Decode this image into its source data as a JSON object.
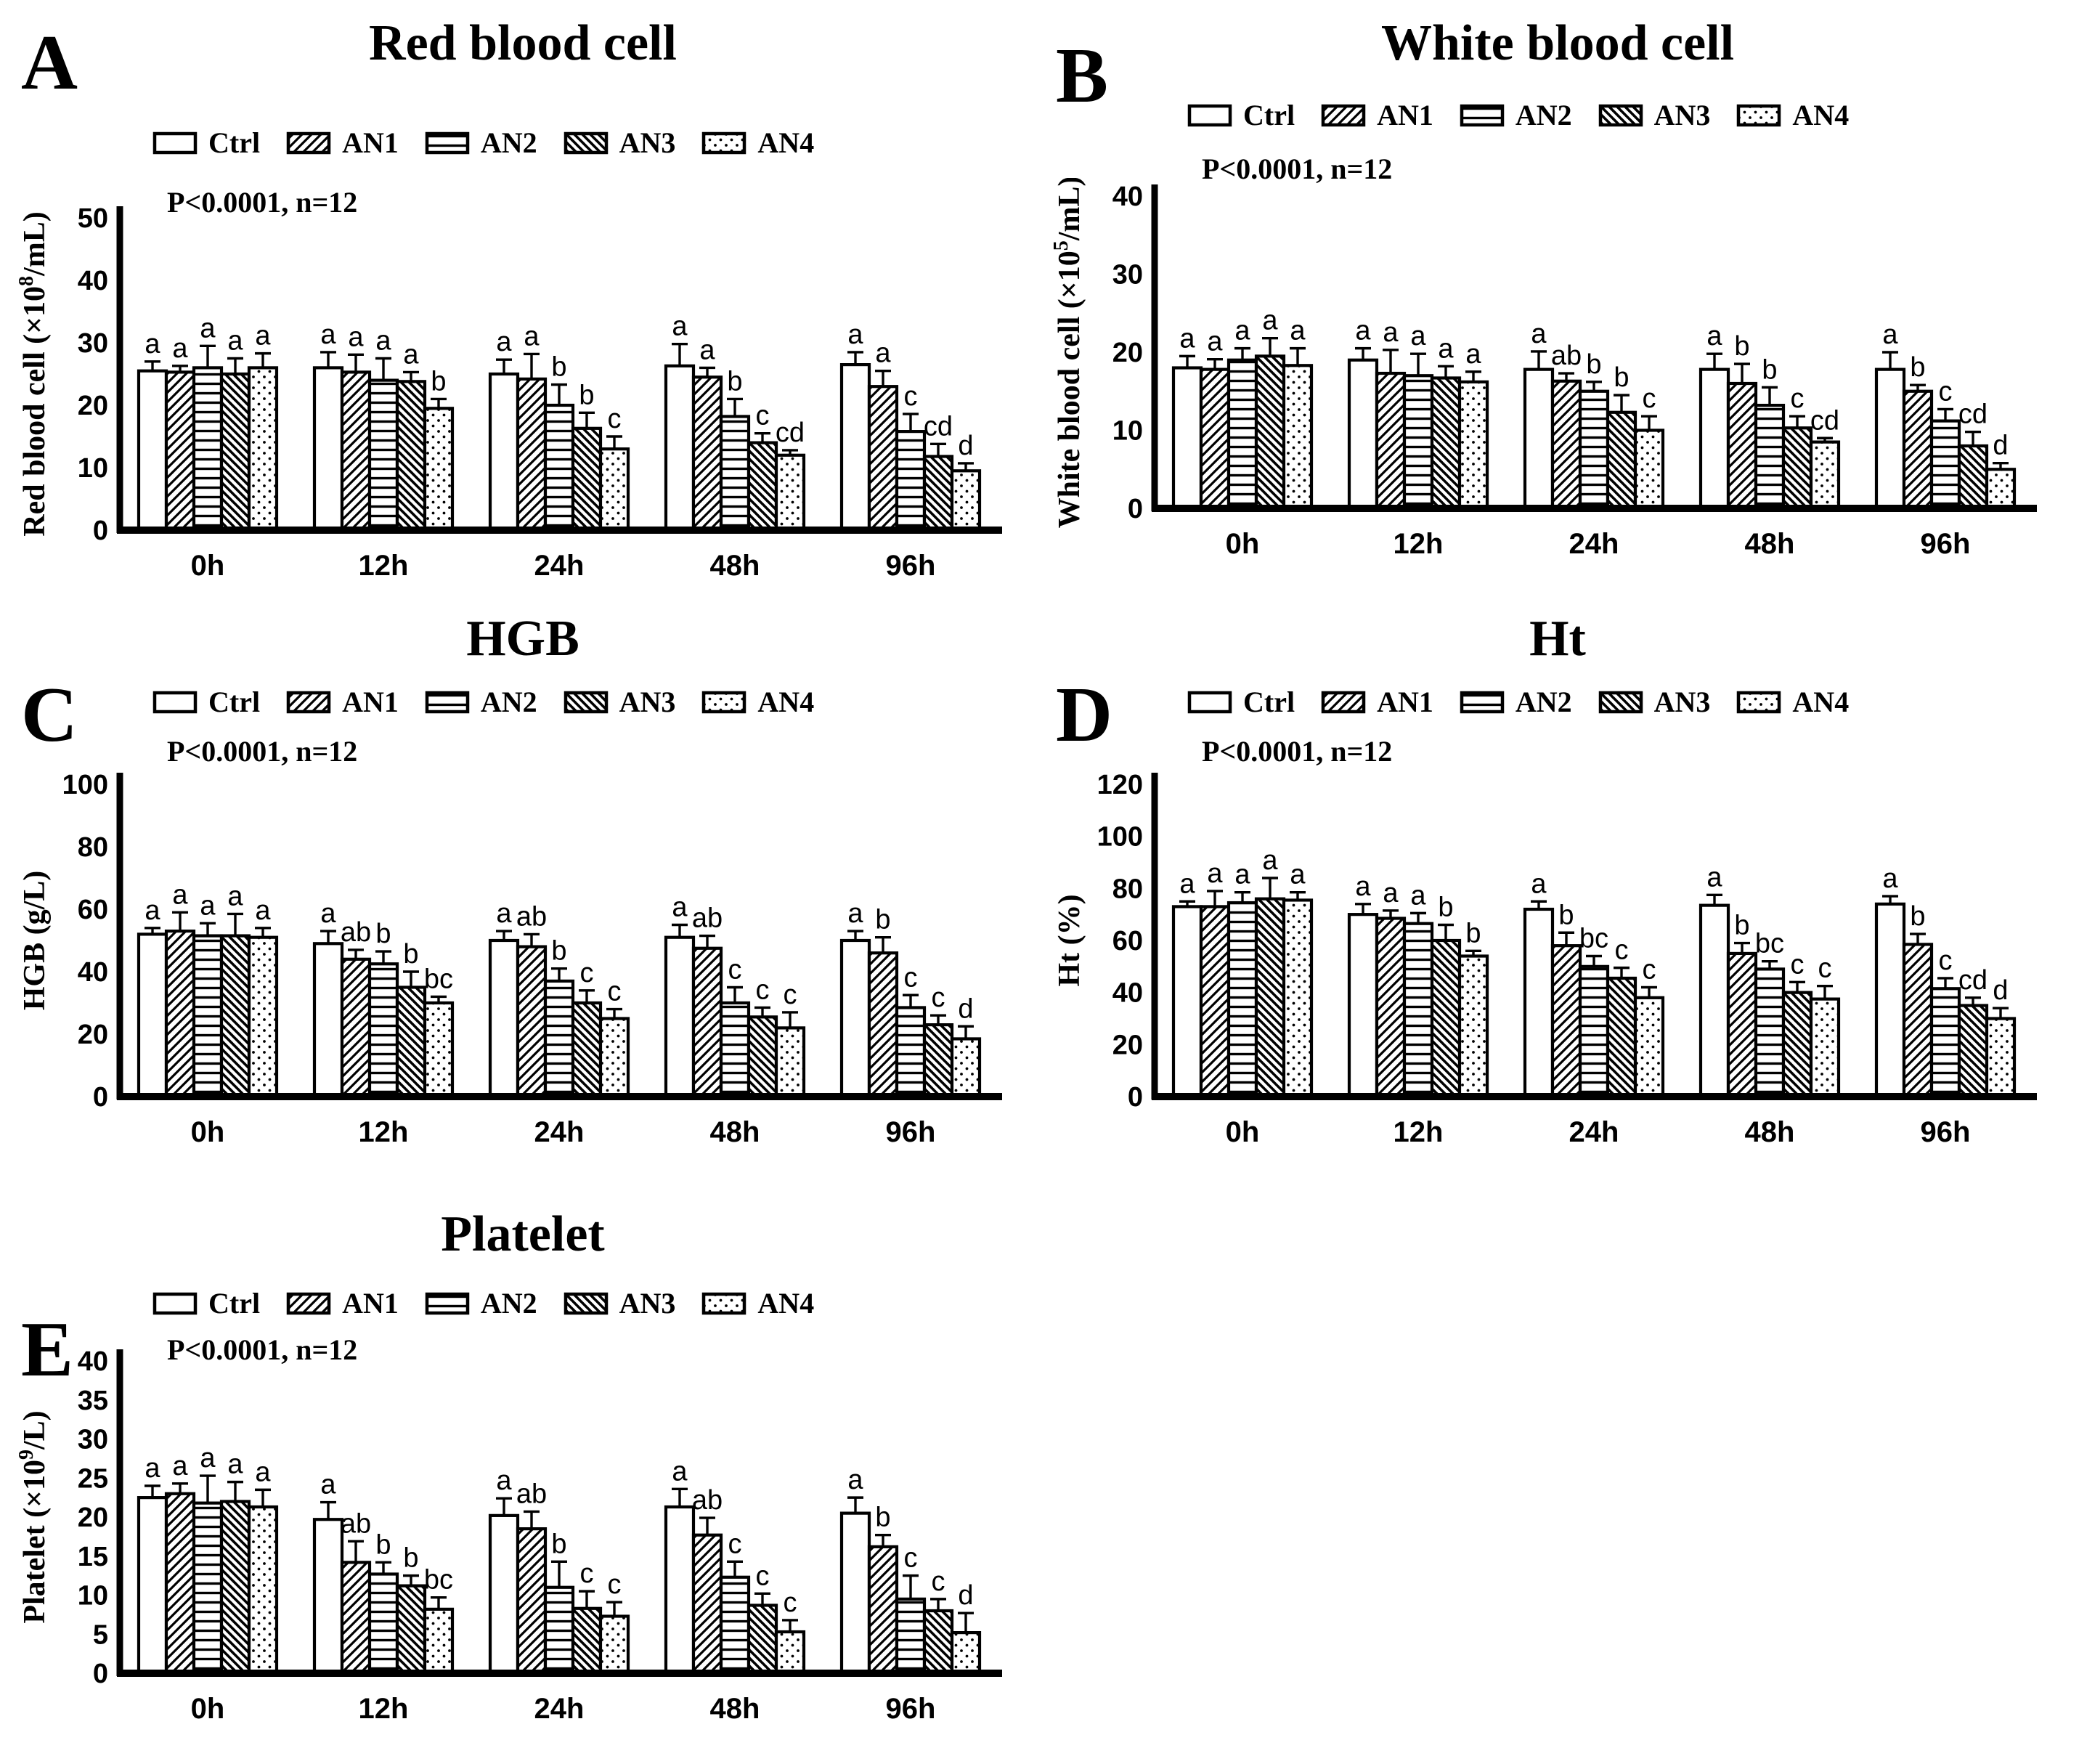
{
  "figure": {
    "stats_note": "P<0.0001, n=12",
    "background_color": "#ffffff",
    "foreground_color": "#000000",
    "legend_labels": [
      "Ctrl",
      "AN1",
      "AN2",
      "AN3",
      "AN4"
    ]
  },
  "chart_data": [
    {
      "panel_letter": "A",
      "type": "bar",
      "title": "Red blood cell",
      "ylabel": {
        "prefix": "Red blood cell (×10",
        "sup": "8",
        "suffix": "/mL)"
      },
      "ylim": [
        0,
        50
      ],
      "yticks": [
        0,
        10,
        20,
        30,
        40,
        50
      ],
      "categories": [
        "0h",
        "12h",
        "24h",
        "48h",
        "96h"
      ],
      "legend_position": "top",
      "grid": false,
      "series": [
        {
          "name": "Ctrl",
          "pattern": "plain",
          "values": [
            25.5,
            26,
            25,
            26.3,
            26.5
          ],
          "errors": [
            1.5,
            2.5,
            2.3,
            3.5,
            2
          ],
          "sig": [
            "a",
            "a",
            "a",
            "a",
            "a"
          ]
        },
        {
          "name": "AN1",
          "pattern": "diagonal-up-hatch",
          "values": [
            25.3,
            25.3,
            24.2,
            24.5,
            23
          ],
          "errors": [
            1,
            2.8,
            4,
            1.5,
            2.5
          ],
          "sig": [
            "a",
            "a",
            "a",
            "a",
            "a"
          ]
        },
        {
          "name": "AN2",
          "pattern": "horizontal-lines",
          "values": [
            26,
            24,
            20,
            18.2,
            15.8
          ],
          "errors": [
            3.5,
            3.5,
            3.3,
            2.8,
            2.8
          ],
          "sig": [
            "a",
            "a",
            "b",
            "b",
            "c"
          ]
        },
        {
          "name": "AN3",
          "pattern": "diagonal-down-hatch",
          "values": [
            25,
            23.8,
            16.3,
            14,
            11.8
          ],
          "errors": [
            2.5,
            1.5,
            2.5,
            1.5,
            2
          ],
          "sig": [
            "a",
            "a",
            "b",
            "c",
            "cd"
          ]
        },
        {
          "name": "AN4",
          "pattern": "dots",
          "values": [
            26,
            19.5,
            13,
            12,
            9.5
          ],
          "errors": [
            2.3,
            1.5,
            2,
            0.8,
            1.2
          ],
          "sig": [
            "a",
            "b",
            "c",
            "cd",
            "d"
          ]
        }
      ]
    },
    {
      "panel_letter": "B",
      "type": "bar",
      "title": "White blood cell",
      "ylabel": {
        "prefix": "White blood cell (×10",
        "sup": "5",
        "suffix": "/mL)"
      },
      "ylim": [
        0,
        40
      ],
      "yticks": [
        0,
        10,
        20,
        30,
        40
      ],
      "categories": [
        "0h",
        "12h",
        "24h",
        "48h",
        "96h"
      ],
      "legend_position": "top",
      "grid": false,
      "series": [
        {
          "name": "Ctrl",
          "pattern": "plain",
          "values": [
            18,
            19,
            17.8,
            17.8,
            17.8
          ],
          "errors": [
            1.5,
            1.5,
            2.3,
            2,
            2.2
          ],
          "sig": [
            "a",
            "a",
            "a",
            "a",
            "a"
          ]
        },
        {
          "name": "AN1",
          "pattern": "diagonal-up-hatch",
          "values": [
            17.8,
            17.3,
            16.3,
            16,
            15
          ],
          "errors": [
            1.3,
            3,
            1,
            2.5,
            0.8
          ],
          "sig": [
            "a",
            "a",
            "ab",
            "b",
            "b"
          ]
        },
        {
          "name": "AN2",
          "pattern": "horizontal-lines",
          "values": [
            19,
            17,
            15,
            13.2,
            11.2
          ],
          "errors": [
            1.5,
            2.8,
            1.2,
            2.3,
            1.5
          ],
          "sig": [
            "a",
            "a",
            "b",
            "b",
            "c"
          ]
        },
        {
          "name": "AN3",
          "pattern": "diagonal-down-hatch",
          "values": [
            19.5,
            16.7,
            12.3,
            10.3,
            8
          ],
          "errors": [
            2.3,
            1.5,
            2.2,
            1.5,
            1.8
          ],
          "sig": [
            "a",
            "a",
            "b",
            "c",
            "cd"
          ]
        },
        {
          "name": "AN4",
          "pattern": "dots",
          "values": [
            18.3,
            16.2,
            10,
            8.5,
            5
          ],
          "errors": [
            2.2,
            1.3,
            1.8,
            0.5,
            0.8
          ],
          "sig": [
            "a",
            "a",
            "c",
            "cd",
            "d"
          ]
        }
      ]
    },
    {
      "panel_letter": "C",
      "type": "bar",
      "title": "HGB",
      "ylabel": {
        "prefix": "HGB (g/L)",
        "sup": "",
        "suffix": ""
      },
      "ylim": [
        0,
        100
      ],
      "yticks": [
        0,
        20,
        40,
        60,
        80,
        100
      ],
      "categories": [
        "0h",
        "12h",
        "24h",
        "48h",
        "96h"
      ],
      "legend_position": "top",
      "grid": false,
      "series": [
        {
          "name": "Ctrl",
          "pattern": "plain",
          "values": [
            52,
            49,
            50,
            51,
            50
          ],
          "errors": [
            2,
            4,
            3,
            4,
            3
          ],
          "sig": [
            "a",
            "a",
            "a",
            "a",
            "a"
          ]
        },
        {
          "name": "AN1",
          "pattern": "diagonal-up-hatch",
          "values": [
            53,
            44,
            48,
            47.5,
            46
          ],
          "errors": [
            6,
            3,
            4,
            4,
            5
          ],
          "sig": [
            "a",
            "ab",
            "ab",
            "ab",
            "b"
          ]
        },
        {
          "name": "AN2",
          "pattern": "horizontal-lines",
          "values": [
            51.5,
            42.5,
            37,
            30,
            28.5
          ],
          "errors": [
            4,
            4,
            4,
            5,
            4
          ],
          "sig": [
            "a",
            "b",
            "b",
            "c",
            "c"
          ]
        },
        {
          "name": "AN3",
          "pattern": "diagonal-down-hatch",
          "values": [
            51.5,
            35,
            30,
            25.5,
            23
          ],
          "errors": [
            7,
            5,
            4,
            3,
            3
          ],
          "sig": [
            "a",
            "b",
            "c",
            "c",
            "c"
          ]
        },
        {
          "name": "AN4",
          "pattern": "dots",
          "values": [
            51,
            30,
            25,
            22,
            18.5
          ],
          "errors": [
            3,
            2,
            3,
            5,
            4
          ],
          "sig": [
            "a",
            "bc",
            "c",
            "c",
            "d"
          ]
        }
      ]
    },
    {
      "panel_letter": "D",
      "type": "bar",
      "title": "Ht",
      "ylabel": {
        "prefix": "Ht (%)",
        "sup": "",
        "suffix": ""
      },
      "ylim": [
        0,
        120
      ],
      "yticks": [
        0,
        20,
        40,
        60,
        80,
        100,
        120
      ],
      "categories": [
        "0h",
        "12h",
        "24h",
        "48h",
        "96h"
      ],
      "legend_position": "top",
      "grid": false,
      "series": [
        {
          "name": "Ctrl",
          "pattern": "plain",
          "values": [
            73,
            70,
            72,
            73.5,
            74
          ],
          "errors": [
            2,
            4,
            3,
            4,
            3
          ],
          "sig": [
            "a",
            "a",
            "a",
            "a",
            "a"
          ]
        },
        {
          "name": "AN1",
          "pattern": "diagonal-up-hatch",
          "values": [
            73,
            68.5,
            58,
            55,
            58.5
          ],
          "errors": [
            6,
            3,
            5,
            4,
            4
          ],
          "sig": [
            "a",
            "a",
            "b",
            "b",
            "b"
          ]
        },
        {
          "name": "AN2",
          "pattern": "horizontal-lines",
          "values": [
            74.5,
            66.5,
            50,
            49,
            41.5
          ],
          "errors": [
            4,
            4,
            4,
            3,
            4
          ],
          "sig": [
            "a",
            "a",
            "bc",
            "bc",
            "c"
          ]
        },
        {
          "name": "AN3",
          "pattern": "diagonal-down-hatch",
          "values": [
            76,
            60,
            45.5,
            40,
            35
          ],
          "errors": [
            8,
            6,
            4,
            4,
            3
          ],
          "sig": [
            "a",
            "b",
            "c",
            "c",
            "cd"
          ]
        },
        {
          "name": "AN4",
          "pattern": "dots",
          "values": [
            75.5,
            54,
            38,
            37.5,
            30
          ],
          "errors": [
            3,
            2,
            4,
            5,
            4
          ],
          "sig": [
            "a",
            "b",
            "c",
            "c",
            "d"
          ]
        }
      ]
    },
    {
      "panel_letter": "E",
      "type": "bar",
      "title": "Platelet",
      "ylabel": {
        "prefix": "Platelet (×10",
        "sup": "9",
        "suffix": "/L)"
      },
      "ylim": [
        0,
        40
      ],
      "yticks": [
        0,
        5,
        10,
        15,
        20,
        25,
        30,
        35,
        40
      ],
      "categories": [
        "0h",
        "12h",
        "24h",
        "48h",
        "96h"
      ],
      "legend_position": "top",
      "grid": false,
      "series": [
        {
          "name": "Ctrl",
          "pattern": "plain",
          "values": [
            22.5,
            19.7,
            20.2,
            21.3,
            20.5
          ],
          "errors": [
            1.5,
            2.2,
            2.2,
            2.3,
            2
          ],
          "sig": [
            "a",
            "a",
            "a",
            "a",
            "a"
          ]
        },
        {
          "name": "AN1",
          "pattern": "diagonal-up-hatch",
          "values": [
            23,
            14.2,
            18.5,
            17.7,
            16.2
          ],
          "errors": [
            1.3,
            2.7,
            2.2,
            2.2,
            1.5
          ],
          "sig": [
            "a",
            "ab",
            "ab",
            "ab",
            "b"
          ]
        },
        {
          "name": "AN2",
          "pattern": "horizontal-lines",
          "values": [
            21.8,
            12.7,
            11,
            12.3,
            9.5
          ],
          "errors": [
            3.5,
            1.5,
            3.3,
            2,
            3
          ],
          "sig": [
            "a",
            "b",
            "b",
            "c",
            "c"
          ]
        },
        {
          "name": "AN3",
          "pattern": "diagonal-down-hatch",
          "values": [
            22,
            11.2,
            8.3,
            8.7,
            8
          ],
          "errors": [
            2.5,
            1.3,
            2.2,
            1.5,
            1.5
          ],
          "sig": [
            "a",
            "b",
            "c",
            "c",
            "c"
          ]
        },
        {
          "name": "AN4",
          "pattern": "dots",
          "values": [
            21.3,
            8.2,
            7.3,
            5.3,
            5.2
          ],
          "errors": [
            2.2,
            1.5,
            1.8,
            1.5,
            2.5
          ],
          "sig": [
            "a",
            "bc",
            "c",
            "c",
            "d"
          ]
        }
      ]
    }
  ]
}
